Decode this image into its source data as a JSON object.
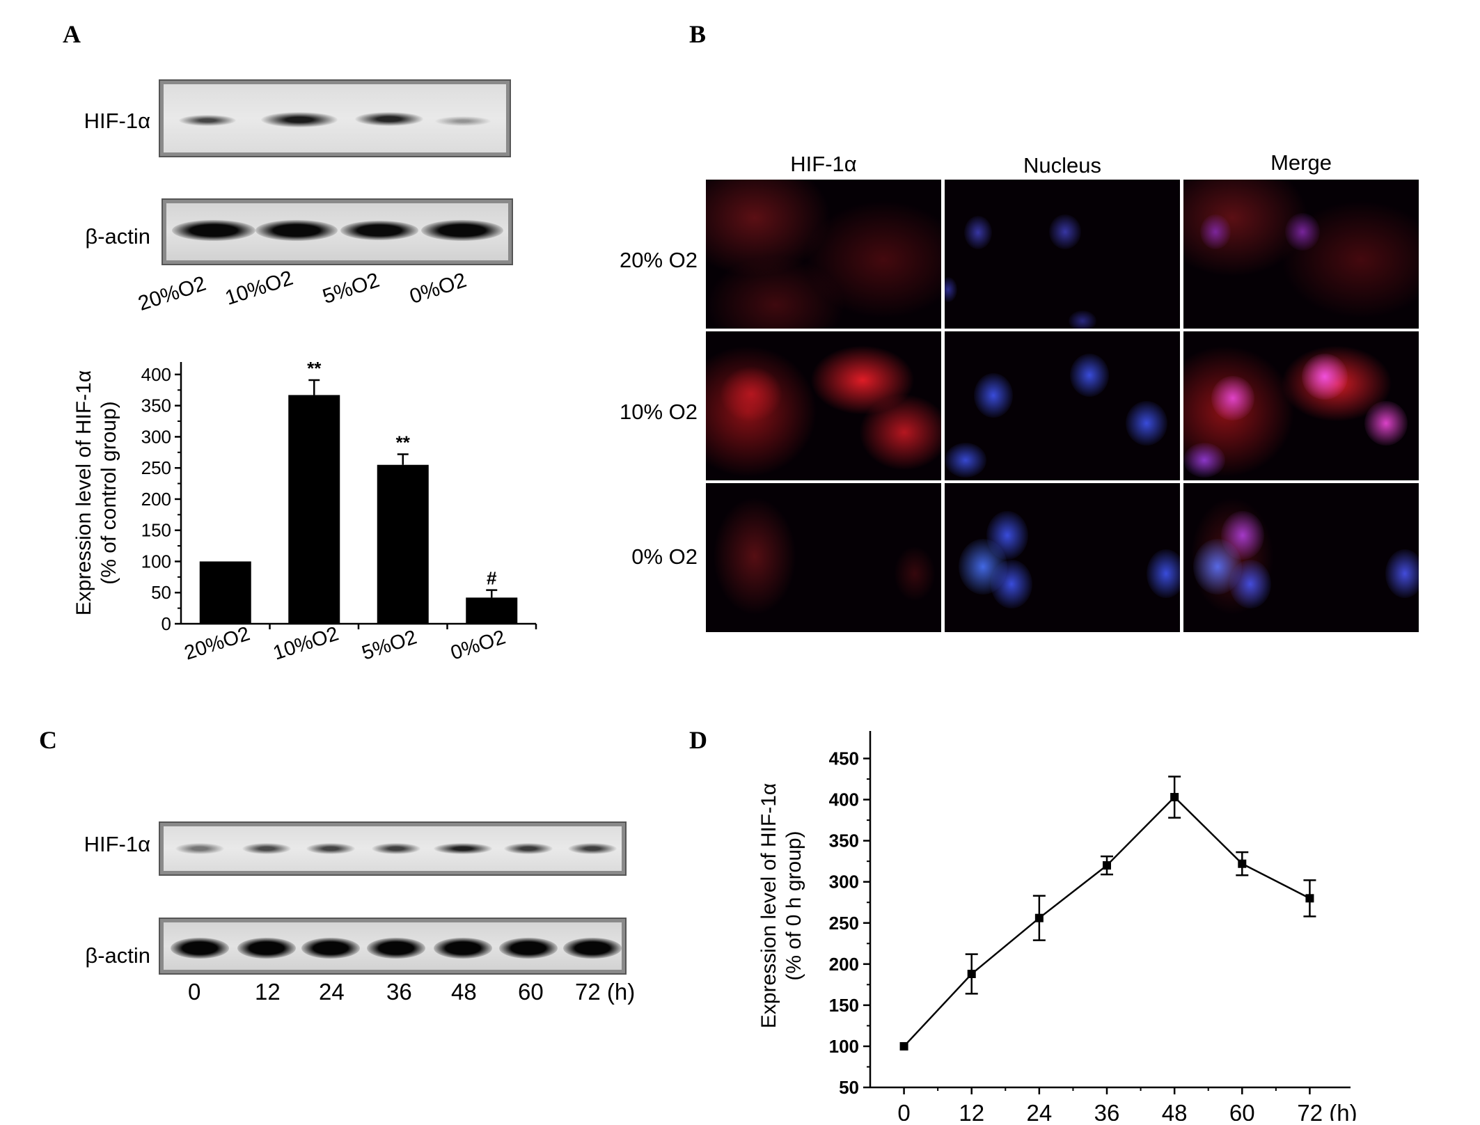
{
  "panels": {
    "a": "A",
    "b": "B",
    "c": "C",
    "d": "D"
  },
  "panel_a": {
    "blot_labels": {
      "target": "HIF-1α",
      "loading": "β-actin"
    },
    "lane_labels": [
      "20%O2",
      "10%O2",
      "5%O2",
      "0%O2"
    ]
  },
  "panel_b": {
    "column_labels": [
      "HIF-1α",
      "Nucleus",
      "Merge"
    ],
    "row_labels": [
      "20% O2",
      "10% O2",
      "0% O2"
    ]
  },
  "panel_c": {
    "blot_labels": {
      "target": "HIF-1α",
      "loading": "β-actin"
    },
    "lane_labels": [
      "0",
      "12",
      "24",
      "36",
      "48",
      "60",
      "72 (h)"
    ]
  },
  "chart_data": [
    {
      "type": "bar",
      "panel": "A",
      "categories": [
        "20%O2",
        "10%O2",
        "5%O2",
        "0%O2"
      ],
      "values": [
        100,
        367,
        255,
        42
      ],
      "errors": [
        0,
        24,
        17,
        12
      ],
      "annotations": [
        "",
        "**",
        "**",
        "#"
      ],
      "ylabel": "Expression level of HIF-1α",
      "ylabel2": "(% of control group)",
      "xlabel": "",
      "ylim": [
        0,
        420
      ],
      "yticks": [
        0,
        50,
        100,
        150,
        200,
        250,
        300,
        350,
        400
      ],
      "bar_color": "#000000",
      "grid": false
    },
    {
      "type": "line",
      "panel": "D",
      "x": [
        0,
        12,
        24,
        36,
        48,
        60,
        72
      ],
      "xtick_labels": [
        "0",
        "12",
        "24",
        "36",
        "48",
        "60",
        "72 (h)"
      ],
      "values": [
        100,
        188,
        256,
        320,
        403,
        322,
        280
      ],
      "errors": [
        0,
        24,
        27,
        11,
        25,
        14,
        22
      ],
      "ylabel": "Expression level of HIF-1α",
      "ylabel2": "(% of 0 h group)",
      "xlabel": "",
      "xlim": [
        -6,
        78
      ],
      "ylim": [
        50,
        475
      ],
      "yticks": [
        50,
        100,
        150,
        200,
        250,
        300,
        350,
        400,
        450
      ],
      "marker": "square",
      "line_color": "#000000",
      "grid": false
    }
  ]
}
